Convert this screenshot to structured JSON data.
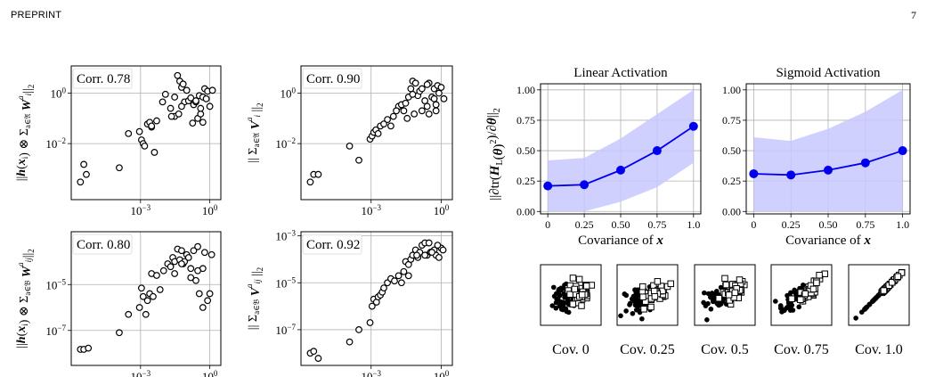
{
  "header": {
    "left": "PREPRINT",
    "page_number": "7"
  },
  "chart_data": [
    {
      "type": "scatter",
      "corr_label": "Corr. 0.78",
      "ylabel": "||h(x_i) ⊗ Σ_{a∈𝔄} W^a_i||_2",
      "log_x": true,
      "log_y": true,
      "xlim": [
        1e-06,
        3
      ],
      "ylim": [
        6e-05,
        12
      ],
      "x_ticks": [
        {
          "v": 0.001,
          "b": "10",
          "e": "−3"
        },
        {
          "v": 1,
          "b": "10",
          "e": "0"
        }
      ],
      "y_ticks": [
        {
          "v": 1,
          "b": "10",
          "e": "0"
        },
        {
          "v": 0.01,
          "b": "10",
          "e": "−2"
        }
      ],
      "grid": true,
      "x": [
        2.5e-06,
        3.5e-06,
        4.5e-06,
        0.00012,
        0.0003,
        0.0009,
        0.0011,
        0.0013,
        0.0015,
        0.002,
        0.0025,
        0.003,
        0.004,
        0.005,
        0.003,
        0.012,
        0.02,
        0.03,
        0.04,
        0.05,
        0.06,
        0.07,
        0.08,
        0.1,
        0.12,
        0.15,
        0.2,
        0.25,
        0.3,
        0.35,
        0.4,
        0.5,
        0.6,
        0.7,
        0.8,
        1.0,
        1.3,
        0.06,
        0.03,
        0.5,
        0.18,
        0.009,
        0.022,
        0.045,
        0.25,
        0.4
      ],
      "y": [
        0.0003,
        0.0015,
        0.0006,
        0.0011,
        0.025,
        0.03,
        0.014,
        0.01,
        0.008,
        0.06,
        0.07,
        0.045,
        0.0045,
        0.08,
        0.05,
        0.9,
        0.25,
        0.7,
        5,
        3,
        1.7,
        2.3,
        0.45,
        1.3,
        0.5,
        0.65,
        0.35,
        0.45,
        0.1,
        0.8,
        0.15,
        0.7,
        1.5,
        0.6,
        1.2,
        0.3,
        1.3,
        0.3,
        0.12,
        0.07,
        0.065,
        0.45,
        0.12,
        0.15,
        0.5,
        0.25
      ]
    },
    {
      "type": "scatter",
      "corr_label": "Corr. 0.90",
      "ylabel": "|| Σ_{a∈𝔄} V^a_i ||_2",
      "log_x": true,
      "log_y": true,
      "xlim": [
        1e-06,
        3
      ],
      "ylim": [
        6e-05,
        12
      ],
      "x_ticks": [
        {
          "v": 0.001,
          "b": "10",
          "e": "−3"
        },
        {
          "v": 1,
          "b": "10",
          "e": "0"
        }
      ],
      "y_ticks": [
        {
          "v": 1,
          "b": "10",
          "e": "0"
        },
        {
          "v": 0.01,
          "b": "10",
          "e": "−2"
        }
      ],
      "grid": true,
      "x": [
        2.5e-06,
        3.5e-06,
        5.5e-06,
        0.00012,
        0.0003,
        0.0009,
        0.0011,
        0.0013,
        0.0016,
        0.002,
        0.0025,
        0.0035,
        0.005,
        0.007,
        0.009,
        0.015,
        0.02,
        0.025,
        0.03,
        0.04,
        0.05,
        0.06,
        0.08,
        0.1,
        0.12,
        0.15,
        0.2,
        0.25,
        0.3,
        0.4,
        0.5,
        0.6,
        0.7,
        0.8,
        1.0,
        1.3,
        0.035,
        0.07,
        0.15,
        0.3,
        0.5,
        0.012,
        0.06,
        0.25,
        0.6
      ],
      "y": [
        0.0003,
        0.0006,
        0.0006,
        0.008,
        0.0022,
        0.015,
        0.02,
        0.028,
        0.035,
        0.025,
        0.05,
        0.06,
        0.09,
        0.05,
        0.12,
        0.3,
        0.35,
        0.2,
        0.4,
        0.7,
        1.5,
        3,
        2.5,
        0.8,
        1.2,
        1.5,
        0.5,
        0.3,
        2.5,
        0.7,
        1.5,
        0.2,
        2,
        1,
        1.7,
        0.6,
        0.1,
        0.15,
        0.2,
        0.15,
        0.6,
        0.2,
        0.9,
        2.2,
        0.35
      ]
    },
    {
      "type": "scatter",
      "corr_label": "Corr. 0.80",
      "ylabel": "||h(x_i) ⊗ Σ_{a∈𝔅} W^a_ij||_2",
      "log_x": true,
      "log_y": true,
      "xlim": [
        1e-06,
        3
      ],
      "ylim": [
        3e-09,
        0.002
      ],
      "x_ticks": [
        {
          "v": 0.001,
          "b": "10",
          "e": "−3"
        },
        {
          "v": 1,
          "b": "10",
          "e": "0"
        }
      ],
      "y_ticks": [
        {
          "v": 1e-05,
          "b": "10",
          "e": "−5"
        },
        {
          "v": 1e-07,
          "b": "10",
          "e": "−7"
        }
      ],
      "grid": true,
      "x": [
        2.5e-06,
        3.5e-06,
        5.5e-06,
        0.00012,
        0.0003,
        0.0009,
        0.0011,
        0.0013,
        0.0017,
        0.002,
        0.0025,
        0.003,
        0.0035,
        0.005,
        0.007,
        0.01,
        0.015,
        0.02,
        0.025,
        0.03,
        0.04,
        0.05,
        0.06,
        0.07,
        0.08,
        0.1,
        0.12,
        0.15,
        0.2,
        0.25,
        0.3,
        0.35,
        0.5,
        0.6,
        0.8,
        1.0,
        1.2,
        0.03,
        0.06,
        0.15,
        0.3,
        0.5
      ],
      "y": [
        1.5e-08,
        1.5e-08,
        1.7e-08,
        8e-08,
        5e-07,
        1e-06,
        7e-06,
        3e-06,
        5e-07,
        2e-06,
        4e-06,
        3e-05,
        3e-06,
        2.5e-05,
        6e-06,
        4e-05,
        8e-05,
        6e-05,
        0.00015,
        0.0001,
        0.00035,
        0.00012,
        0.0003,
        8e-05,
        0.0001,
        0.0002,
        0.00015,
        5e-05,
        0.0003,
        1.5e-05,
        0.00045,
        4e-06,
        5e-05,
        0.00025,
        2e-06,
        4e-06,
        0.0002,
        3e-05,
        8e-05,
        2e-05,
        4e-05,
        1e-06
      ]
    },
    {
      "type": "scatter",
      "corr_label": "Corr. 0.92",
      "ylabel": "|| Σ_{a∈𝔅} V^a_ij ||_2",
      "log_x": true,
      "log_y": true,
      "xlim": [
        1e-06,
        3
      ],
      "ylim": [
        3e-09,
        0.0015
      ],
      "x_ticks": [
        {
          "v": 0.001,
          "b": "10",
          "e": "−3"
        },
        {
          "v": 1,
          "b": "10",
          "e": "0"
        }
      ],
      "y_ticks": [
        {
          "v": 0.001,
          "b": "10",
          "e": "−3"
        },
        {
          "v": 1e-05,
          "b": "10",
          "e": "−5"
        },
        {
          "v": 1e-07,
          "b": "10",
          "e": "−7"
        }
      ],
      "grid": true,
      "x": [
        2.5e-06,
        3.5e-06,
        5.5e-06,
        0.00012,
        0.0003,
        0.0009,
        0.0011,
        0.0013,
        0.0017,
        0.002,
        0.0025,
        0.003,
        0.0035,
        0.005,
        0.007,
        0.01,
        0.015,
        0.02,
        0.025,
        0.03,
        0.04,
        0.05,
        0.06,
        0.08,
        0.1,
        0.12,
        0.15,
        0.2,
        0.25,
        0.3,
        0.35,
        0.5,
        0.6,
        0.8,
        1.0,
        1.2,
        0.04,
        0.09,
        0.2,
        0.4,
        0.7
      ],
      "y": [
        1e-08,
        1.2e-08,
        6e-09,
        3e-08,
        1e-07,
        2e-07,
        1e-06,
        2e-06,
        1.5e-06,
        2.5e-06,
        3e-06,
        4e-06,
        6e-06,
        1e-05,
        1.5e-05,
        1.2e-05,
        2e-05,
        1e-05,
        3e-05,
        8e-05,
        6e-05,
        0.0001,
        0.00015,
        0.00025,
        0.00012,
        0.0002,
        0.0004,
        0.0005,
        0.00015,
        0.0005,
        0.0002,
        0.00025,
        0.00015,
        0.00012,
        0.0003,
        0.00025,
        2e-05,
        0.00015,
        0.00015,
        0.0002,
        0.0004
      ]
    },
    {
      "type": "line",
      "title": "Linear Activation",
      "xlabel": "Covariance of x",
      "ylabel": "||∂tr(H_L(θ)²)/∂θ||_2",
      "x": [
        0,
        0.25,
        0.5,
        0.75,
        1.0
      ],
      "y": [
        0.21,
        0.22,
        0.34,
        0.5,
        0.7
      ],
      "band_low": [
        0.0,
        0.0,
        0.08,
        0.2,
        0.4
      ],
      "band_high": [
        0.42,
        0.44,
        0.6,
        0.8,
        1.0
      ],
      "xlim": [
        -0.05,
        1.05
      ],
      "ylim": [
        -0.02,
        1.05
      ],
      "x_tick_labels": [
        "0",
        "0.25",
        "0.50",
        "0.75",
        "1.0"
      ],
      "y_tick_labels": [
        "0.00",
        "0.25",
        "0.50",
        "0.75",
        "1.00"
      ],
      "colors": {
        "line": "#0000ee",
        "band": "#c8c8ff"
      },
      "grid": true
    },
    {
      "type": "line",
      "title": "Sigmoid Activation",
      "xlabel": "Covariance of x",
      "x": [
        0,
        0.25,
        0.5,
        0.75,
        1.0
      ],
      "y": [
        0.31,
        0.3,
        0.34,
        0.4,
        0.5
      ],
      "band_low": [
        0.0,
        0.0,
        0.0,
        0.0,
        0.0
      ],
      "band_high": [
        0.61,
        0.58,
        0.68,
        0.82,
        1.0
      ],
      "xlim": [
        -0.05,
        1.05
      ],
      "ylim": [
        -0.02,
        1.05
      ],
      "x_tick_labels": [
        "0",
        "0.25",
        "0.50",
        "0.75",
        "1.0"
      ],
      "y_tick_labels": [
        "0.00",
        "0.25",
        "0.50",
        "0.75",
        "1.00"
      ],
      "colors": {
        "line": "#0000ee",
        "band": "#c8c8ff"
      },
      "grid": true
    }
  ],
  "cov_panels": [
    {
      "label": "Cov. 0",
      "cov": 0
    },
    {
      "label": "Cov. 0.25",
      "cov": 0.25
    },
    {
      "label": "Cov. 0.5",
      "cov": 0.5
    },
    {
      "label": "Cov. 0.75",
      "cov": 0.75
    },
    {
      "label": "Cov. 1.0",
      "cov": 1.0
    }
  ]
}
